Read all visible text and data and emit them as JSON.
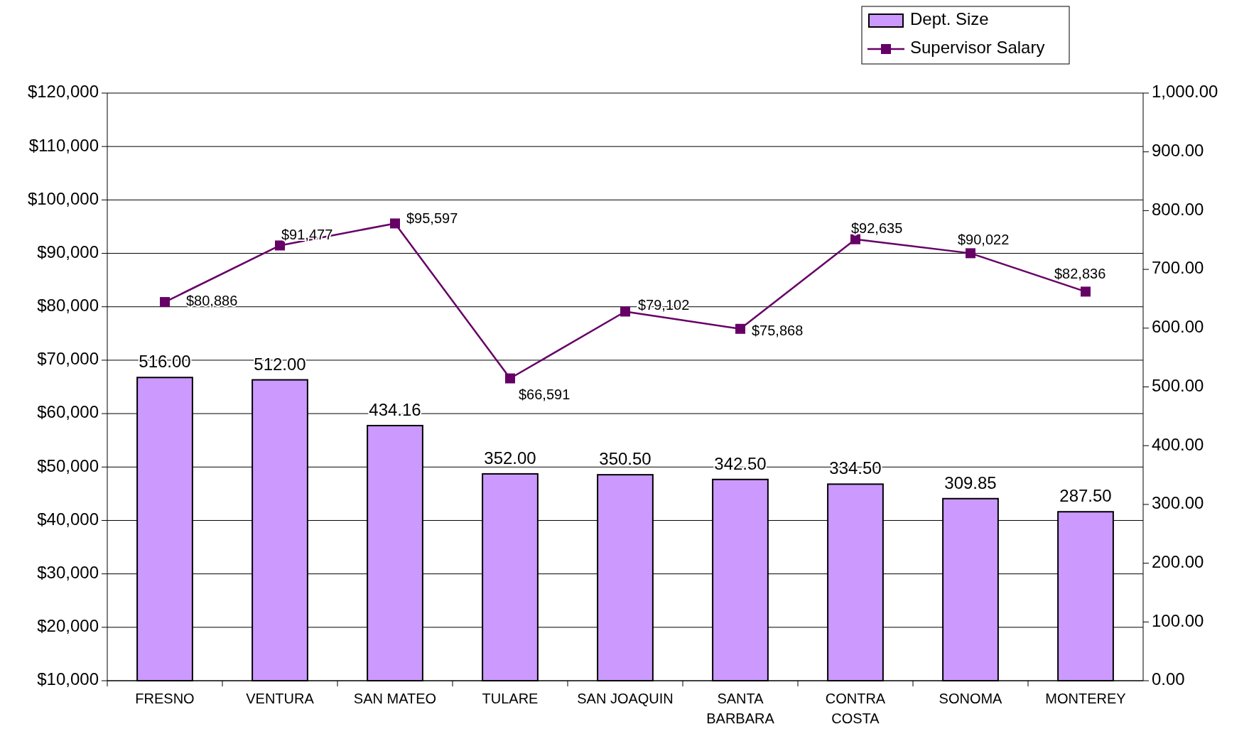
{
  "chart_data": {
    "type": "bar",
    "categories": [
      "FRESNO",
      "VENTURA",
      "SAN MATEO",
      "TULARE",
      "SAN JOAQUIN",
      "SANTA\nBARBARA",
      "CONTRA\nCOSTA",
      "SONOMA",
      "MONTEREY"
    ],
    "series": [
      {
        "name": "Dept. Size",
        "axis": "y2",
        "color": "#cc99ff",
        "values": [
          516,
          512,
          434.16,
          352,
          350.5,
          342.5,
          334.5,
          309.85,
          287.5
        ],
        "value_labels": [
          "516.00",
          "512.00",
          "434.16",
          "352.00",
          "350.50",
          "342.50",
          "334.50",
          "309.85",
          "287.50"
        ]
      },
      {
        "name": "Supervisor Salary",
        "type": "line",
        "axis": "y",
        "color": "#660066",
        "marker": "square",
        "values": [
          80886,
          91477,
          95597,
          66591,
          79102,
          75868,
          92635,
          90022,
          82836
        ],
        "value_labels": [
          "$80,886",
          "$91,477",
          "$95,597",
          "$66,591",
          "$79,102",
          "$75,868",
          "$92,635",
          "$90,022",
          "$82,836"
        ]
      }
    ],
    "ylim": [
      10000,
      120000
    ],
    "yticks": [
      {
        "value": 10000,
        "label": "$10,000"
      },
      {
        "value": 20000,
        "label": "$20,000"
      },
      {
        "value": 30000,
        "label": "$30,000"
      },
      {
        "value": 40000,
        "label": "$40,000"
      },
      {
        "value": 50000,
        "label": "$50,000"
      },
      {
        "value": 60000,
        "label": "$60,000"
      },
      {
        "value": 70000,
        "label": "$70,000"
      },
      {
        "value": 80000,
        "label": "$80,000"
      },
      {
        "value": 90000,
        "label": "$90,000"
      },
      {
        "value": 100000,
        "label": "$100,000"
      },
      {
        "value": 110000,
        "label": "$110,000"
      },
      {
        "value": 120000,
        "label": "$120,000"
      }
    ],
    "y2lim": [
      0,
      1000
    ],
    "y2ticks": [
      {
        "value": 0,
        "label": "0.00"
      },
      {
        "value": 100,
        "label": "100.00"
      },
      {
        "value": 200,
        "label": "200.00"
      },
      {
        "value": 300,
        "label": "300.00"
      },
      {
        "value": 400,
        "label": "400.00"
      },
      {
        "value": 500,
        "label": "500.00"
      },
      {
        "value": 600,
        "label": "600.00"
      },
      {
        "value": 700,
        "label": "700.00"
      },
      {
        "value": 800,
        "label": "800.00"
      },
      {
        "value": 900,
        "label": "900.00"
      },
      {
        "value": 1000,
        "label": "1,000.00"
      }
    ],
    "grid": "y",
    "legend": "top right"
  }
}
